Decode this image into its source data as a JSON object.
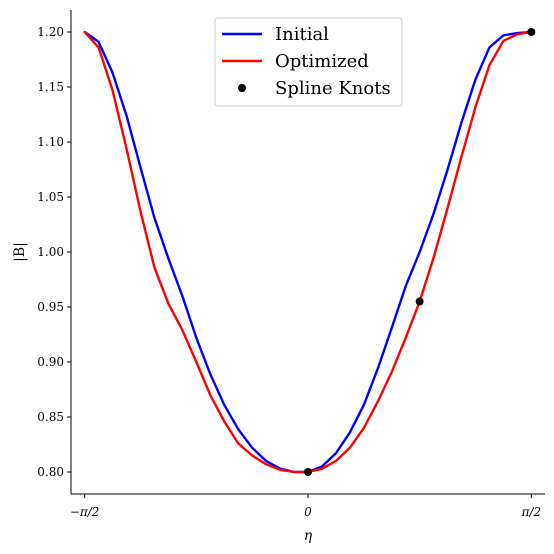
{
  "chart_data": {
    "type": "line",
    "xlabel": "η",
    "ylabel": "|B|",
    "xlim": [
      -1.6667,
      1.6667
    ],
    "ylim": [
      0.78,
      1.22
    ],
    "x_ticks": [
      {
        "value": -1.5708,
        "label": "−π/2"
      },
      {
        "value": 0,
        "label": "0"
      },
      {
        "value": 1.5708,
        "label": "π/2"
      }
    ],
    "y_ticks": [
      {
        "value": 0.8,
        "label": "0.80"
      },
      {
        "value": 0.85,
        "label": "0.85"
      },
      {
        "value": 0.9,
        "label": "0.90"
      },
      {
        "value": 0.95,
        "label": "0.95"
      },
      {
        "value": 1.0,
        "label": "1.00"
      },
      {
        "value": 1.05,
        "label": "1.05"
      },
      {
        "value": 1.1,
        "label": "1.10"
      },
      {
        "value": 1.15,
        "label": "1.15"
      },
      {
        "value": 1.2,
        "label": "1.20"
      }
    ],
    "grid": false,
    "legend_position": "top-center",
    "series": [
      {
        "name": "Initial",
        "kind": "line",
        "color": "#0000ff",
        "x": [
          -1.5708,
          -1.4726,
          -1.3744,
          -1.2763,
          -1.1781,
          -1.0799,
          -0.9817,
          -0.8836,
          -0.7854,
          -0.6872,
          -0.589,
          -0.4909,
          -0.3927,
          -0.2945,
          -0.1963,
          -0.0982,
          0,
          0.0982,
          0.1963,
          0.2945,
          0.3927,
          0.4909,
          0.589,
          0.6872,
          0.7854,
          0.8836,
          0.9817,
          1.0799,
          1.1781,
          1.2763,
          1.3744,
          1.4726,
          1.5708
        ],
        "y": [
          1.2,
          1.191,
          1.163,
          1.124,
          1.077,
          1.031,
          0.994,
          0.96,
          0.922,
          0.889,
          0.861,
          0.839,
          0.822,
          0.81,
          0.803,
          0.8,
          0.8,
          0.805,
          0.817,
          0.836,
          0.861,
          0.894,
          0.931,
          0.969,
          1.0,
          1.035,
          1.075,
          1.118,
          1.157,
          1.186,
          1.197,
          1.199,
          1.2
        ]
      },
      {
        "name": "Optimized",
        "kind": "line",
        "color": "#ff0000",
        "x": [
          -1.5708,
          -1.4726,
          -1.3744,
          -1.2763,
          -1.1781,
          -1.0799,
          -0.9817,
          -0.8836,
          -0.7854,
          -0.6872,
          -0.589,
          -0.4909,
          -0.3927,
          -0.2945,
          -0.1963,
          -0.0982,
          0,
          0.0982,
          0.1963,
          0.2945,
          0.3927,
          0.4909,
          0.589,
          0.6872,
          0.7854,
          0.8836,
          0.9817,
          1.0799,
          1.1781,
          1.2763,
          1.3744,
          1.4726,
          1.5708
        ],
        "y": [
          1.2,
          1.186,
          1.147,
          1.094,
          1.037,
          0.986,
          0.953,
          0.929,
          0.9,
          0.87,
          0.846,
          0.826,
          0.815,
          0.807,
          0.802,
          0.8,
          0.8,
          0.803,
          0.81,
          0.822,
          0.84,
          0.864,
          0.891,
          0.922,
          0.955,
          0.995,
          1.04,
          1.087,
          1.132,
          1.17,
          1.192,
          1.198,
          1.2
        ]
      },
      {
        "name": "Spline Knots",
        "kind": "scatter",
        "color": "#000000",
        "x": [
          0,
          0.7854,
          1.5708
        ],
        "y": [
          0.8,
          0.955,
          1.2
        ]
      }
    ]
  }
}
